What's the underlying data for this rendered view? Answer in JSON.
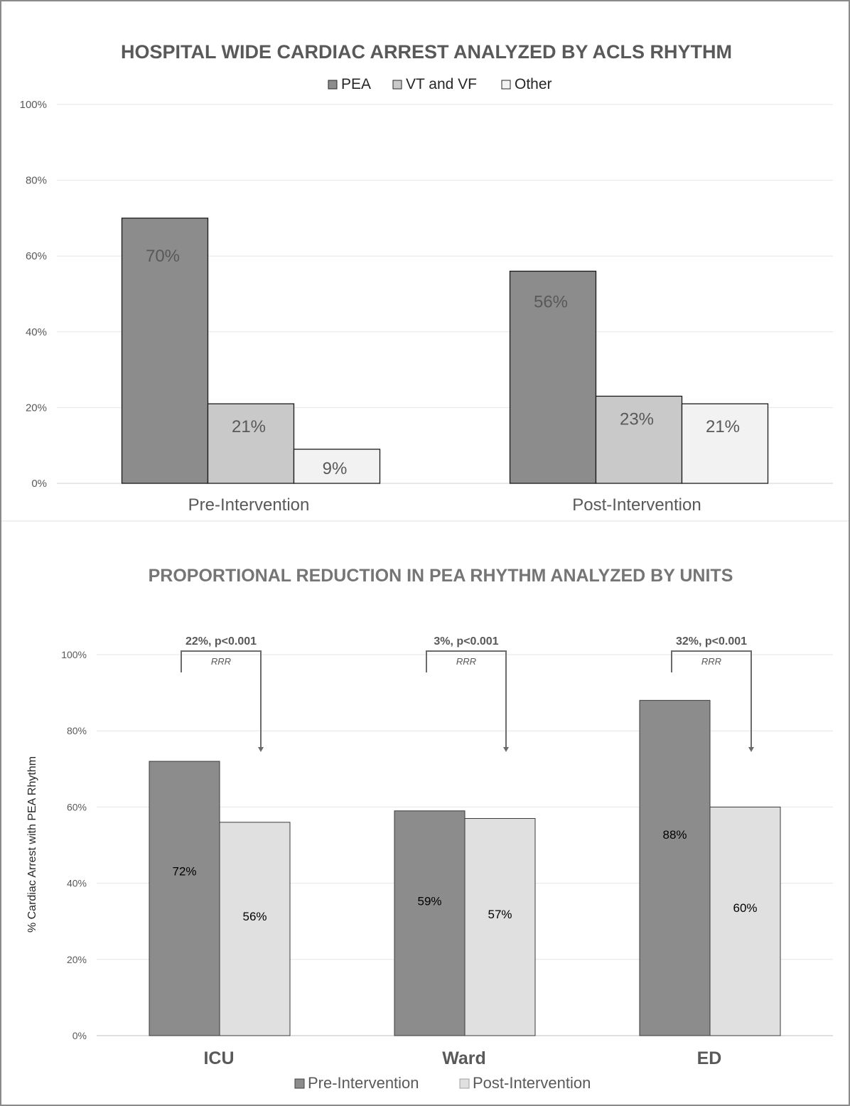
{
  "chart_data": [
    {
      "type": "bar",
      "title": "HOSPITAL WIDE CARDIAC ARREST ANALYZED BY ACLS RHYTHM",
      "categories": [
        "Pre-Intervention",
        "Post-Intervention"
      ],
      "series": [
        {
          "name": "PEA",
          "values": [
            70,
            56
          ],
          "labels": [
            "70%",
            "56%"
          ],
          "color": "#8c8c8c"
        },
        {
          "name": "VT and VF",
          "values": [
            21,
            23
          ],
          "labels": [
            "21%",
            "23%"
          ],
          "color": "#c9c9c9"
        },
        {
          "name": "Other",
          "values": [
            9,
            21
          ],
          "labels": [
            "9%",
            "21%"
          ],
          "color": "#f2f2f2"
        }
      ],
      "yticks": [
        "0%",
        "20%",
        "40%",
        "60%",
        "80%",
        "100%"
      ],
      "ylim": [
        0,
        100
      ],
      "grid": true,
      "legend_position": "top"
    },
    {
      "type": "bar",
      "title": "PROPORTIONAL REDUCTION IN PEA RHYTHM ANALYZED BY UNITS",
      "ylabel": "% Cardiac Arrest with PEA Rhythm",
      "categories": [
        "ICU",
        "Ward",
        "ED"
      ],
      "series": [
        {
          "name": "Pre-Intervention",
          "values": [
            72,
            59,
            88
          ],
          "labels": [
            "72%",
            "59%",
            "88%"
          ],
          "color": "#8c8c8c"
        },
        {
          "name": "Post-Intervention",
          "values": [
            56,
            57,
            60
          ],
          "labels": [
            "56%",
            "57%",
            "60%"
          ],
          "color": "#e0e0e0"
        }
      ],
      "annotations": [
        {
          "category": "ICU",
          "text": "22%, p<0.001",
          "subtext": "RRR"
        },
        {
          "category": "Ward",
          "text": "3%, p<0.001",
          "subtext": "RRR"
        },
        {
          "category": "ED",
          "text": "32%, p<0.001",
          "subtext": "RRR"
        }
      ],
      "yticks": [
        "0%",
        "20%",
        "40%",
        "60%",
        "80%",
        "100%"
      ],
      "ylim": [
        0,
        100
      ],
      "grid": true,
      "legend_position": "bottom"
    }
  ]
}
